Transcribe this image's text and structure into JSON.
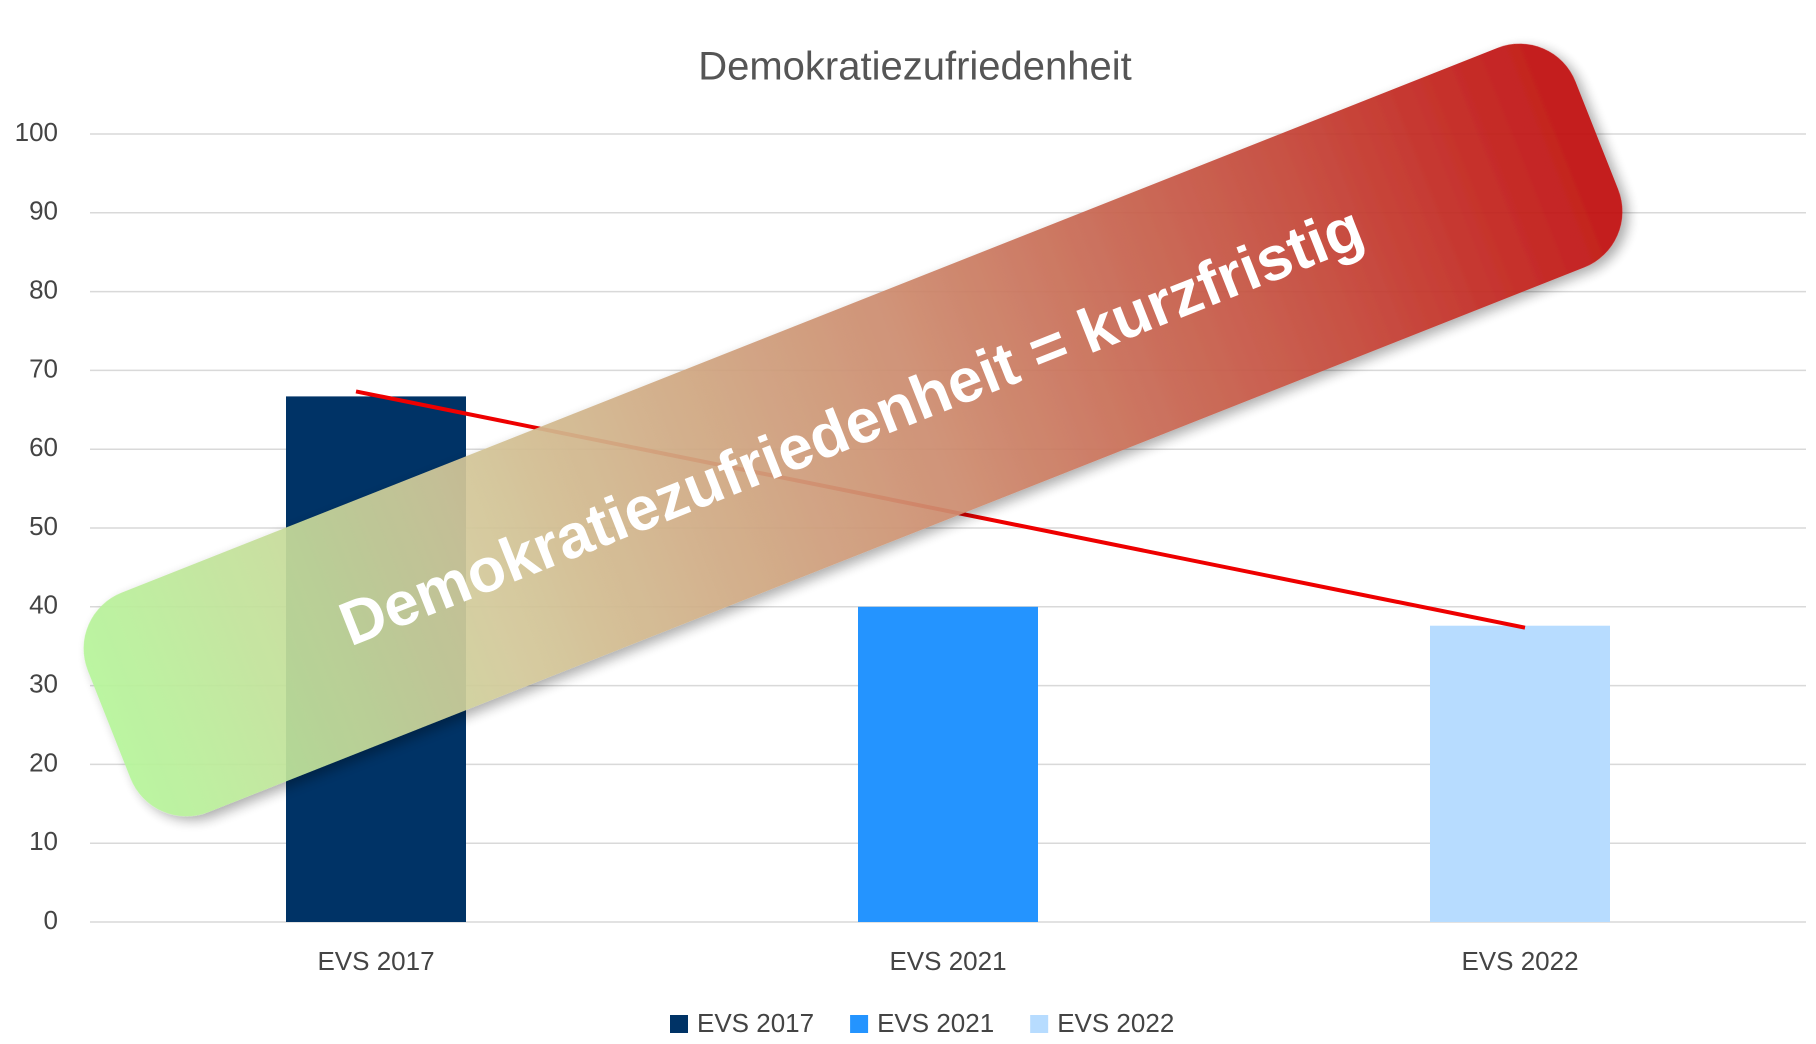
{
  "chart_data": {
    "type": "bar",
    "title": "Demokratiezufriedenheit",
    "categories": [
      "EVS 2017",
      "EVS 2021",
      "EVS 2022"
    ],
    "series": [
      {
        "name": "EVS 2017",
        "color": "#003366",
        "values": [
          66.7,
          null,
          null
        ]
      },
      {
        "name": "EVS 2021",
        "color": "#2494ff",
        "values": [
          null,
          40,
          null
        ]
      },
      {
        "name": "EVS 2022",
        "color": "#b7dcff",
        "values": [
          null,
          null,
          37.6
        ]
      }
    ],
    "ylim": [
      0,
      100
    ],
    "yticks": [
      0,
      10,
      20,
      30,
      40,
      50,
      60,
      70,
      80,
      90,
      100
    ],
    "grid": true,
    "trend_color": "#ee0000",
    "legend": "bottom"
  },
  "banner": {
    "text": "Demokratiezufriedenheit = kurzfristig"
  }
}
